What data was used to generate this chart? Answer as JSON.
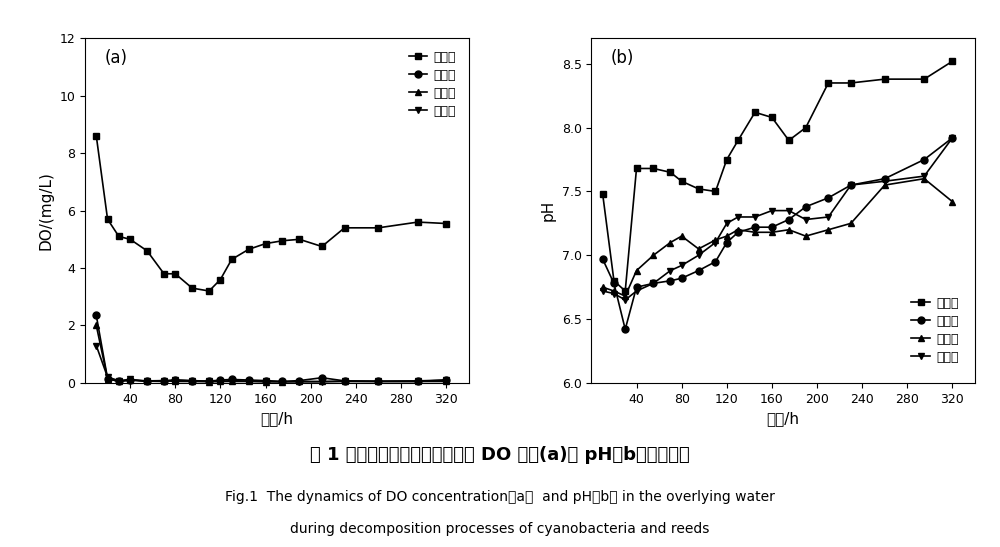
{
  "panel_a": {
    "label": "(a)",
    "xlabel": "时间/h",
    "ylabel": "DO/(mg/L)",
    "xlim": [
      0,
      340
    ],
    "ylim": [
      0,
      12
    ],
    "xticks": [
      40,
      80,
      120,
      160,
      200,
      240,
      280,
      320
    ],
    "yticks": [
      0,
      2,
      4,
      6,
      8,
      10,
      12
    ],
    "series": {
      "control": {
        "label": "对照组",
        "marker": "s",
        "x": [
          10,
          20,
          30,
          40,
          55,
          70,
          80,
          95,
          110,
          120,
          130,
          145,
          160,
          175,
          190,
          210,
          230,
          260,
          295,
          320
        ],
        "y": [
          8.6,
          5.7,
          5.1,
          5.0,
          4.6,
          3.8,
          3.8,
          3.3,
          3.2,
          3.6,
          4.3,
          4.65,
          4.85,
          4.95,
          5.0,
          4.75,
          5.4,
          5.4,
          5.6,
          5.55
        ]
      },
      "cyanobacteria": {
        "label": "蓝藻组",
        "marker": "o",
        "x": [
          10,
          20,
          30,
          40,
          55,
          70,
          80,
          95,
          110,
          120,
          130,
          145,
          160,
          175,
          190,
          210,
          230,
          260,
          295,
          320
        ],
        "y": [
          2.35,
          0.15,
          0.05,
          0.1,
          0.07,
          0.08,
          0.1,
          0.08,
          0.06,
          0.1,
          0.12,
          0.1,
          0.08,
          0.05,
          0.08,
          0.18,
          0.07,
          0.06,
          0.07,
          0.1
        ]
      },
      "reed": {
        "label": "芦茩组",
        "marker": "^",
        "x": [
          10,
          20,
          30,
          40,
          55,
          70,
          80,
          95,
          110,
          120,
          130,
          145,
          160,
          175,
          190,
          210,
          230,
          260,
          295,
          320
        ],
        "y": [
          2.0,
          0.15,
          0.05,
          0.1,
          0.05,
          0.08,
          0.05,
          0.05,
          0.04,
          0.05,
          0.05,
          0.05,
          0.04,
          0.04,
          0.05,
          0.05,
          0.05,
          0.05,
          0.05,
          0.05
        ]
      },
      "mixed": {
        "label": "混合组",
        "marker": "v",
        "x": [
          10,
          20,
          30,
          40,
          55,
          70,
          80,
          95,
          110,
          120,
          130,
          145,
          160,
          175,
          190,
          210,
          230,
          260,
          295,
          320
        ],
        "y": [
          1.3,
          0.2,
          0.08,
          0.12,
          0.06,
          0.05,
          0.1,
          0.07,
          0.06,
          0.05,
          0.08,
          0.06,
          0.05,
          0.04,
          0.04,
          0.04,
          0.06,
          0.05,
          0.05,
          0.1
        ]
      }
    }
  },
  "panel_b": {
    "label": "(b)",
    "xlabel": "时间/h",
    "ylabel": "pH",
    "xlim": [
      0,
      340
    ],
    "ylim": [
      6.0,
      8.7
    ],
    "xticks": [
      40,
      80,
      120,
      160,
      200,
      240,
      280,
      320
    ],
    "yticks": [
      6.0,
      6.5,
      7.0,
      7.5,
      8.0,
      8.5
    ],
    "series": {
      "control": {
        "label": "对照组",
        "marker": "s",
        "x": [
          10,
          20,
          30,
          40,
          55,
          70,
          80,
          95,
          110,
          120,
          130,
          145,
          160,
          175,
          190,
          210,
          230,
          260,
          295,
          320
        ],
        "y": [
          7.48,
          6.8,
          6.72,
          7.68,
          7.68,
          7.65,
          7.58,
          7.52,
          7.5,
          7.75,
          7.9,
          8.12,
          8.08,
          7.9,
          8.0,
          8.35,
          8.35,
          8.38,
          8.38,
          8.52
        ]
      },
      "cyanobacteria": {
        "label": "蓝藻组",
        "marker": "o",
        "x": [
          10,
          20,
          30,
          40,
          55,
          70,
          80,
          95,
          110,
          120,
          130,
          145,
          160,
          175,
          190,
          210,
          230,
          260,
          295,
          320
        ],
        "y": [
          6.97,
          6.78,
          6.42,
          6.75,
          6.78,
          6.8,
          6.82,
          6.88,
          6.95,
          7.1,
          7.18,
          7.22,
          7.22,
          7.28,
          7.38,
          7.45,
          7.55,
          7.6,
          7.75,
          7.92
        ]
      },
      "reed": {
        "label": "芦茩组",
        "marker": "^",
        "x": [
          10,
          20,
          30,
          40,
          55,
          70,
          80,
          95,
          110,
          120,
          130,
          145,
          160,
          175,
          190,
          210,
          230,
          260,
          295,
          320
        ],
        "y": [
          6.75,
          6.72,
          6.68,
          6.88,
          7.0,
          7.1,
          7.15,
          7.05,
          7.12,
          7.15,
          7.2,
          7.18,
          7.18,
          7.2,
          7.15,
          7.2,
          7.25,
          7.55,
          7.6,
          7.42
        ]
      },
      "mixed": {
        "label": "混合组",
        "marker": "v",
        "x": [
          10,
          20,
          30,
          40,
          55,
          70,
          80,
          95,
          110,
          120,
          130,
          145,
          160,
          175,
          190,
          210,
          230,
          260,
          295,
          320
        ],
        "y": [
          6.72,
          6.7,
          6.65,
          6.72,
          6.78,
          6.88,
          6.92,
          7.0,
          7.1,
          7.25,
          7.3,
          7.3,
          7.35,
          7.35,
          7.28,
          7.3,
          7.55,
          7.58,
          7.62,
          7.92
        ]
      }
    }
  },
  "caption_zh": "图 1 藻草混合分解过程中上覆水 DO 浓度(a)及 pH（b）动态变化",
  "caption_en1": "Fig.1  The dynamics of DO concentration（a）  and pH（b） in the overlying water",
  "caption_en2": "during decomposition processes of cyanobacteria and reeds",
  "color": "#000000",
  "linewidth": 1.2,
  "markersize": 5
}
